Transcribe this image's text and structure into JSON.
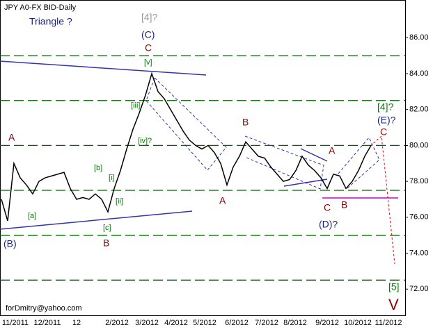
{
  "chart_data": {
    "type": "line",
    "title": "JPY A0-FX BID-Daily",
    "subtitle": "Triangle ?",
    "footer": "forDmitry@yahoo.com",
    "x_labels": [
      "11/2011",
      "12/2011",
      "12",
      "2/2012",
      "3/2012",
      "4/2012",
      "5/2012",
      "6/2012",
      "7/2012",
      "8/2012",
      "9/2012",
      "10/2012",
      "11/2012"
    ],
    "series": [
      {
        "name": "JPY A0-FX BID",
        "color": "#000000",
        "values": [
          77.0,
          75.8,
          79.0,
          78.2,
          77.8,
          77.3,
          78.0,
          78.2,
          78.3,
          78.4,
          78.5,
          77.6,
          77.0,
          77.1,
          77.0,
          77.3,
          77.0,
          76.3,
          77.6,
          78.6,
          79.8,
          80.9,
          81.8,
          82.8,
          84.0,
          83.0,
          82.6,
          82.0,
          81.4,
          80.8,
          80.3,
          80.0,
          79.8,
          80.0,
          79.6,
          79.0,
          77.8,
          78.8,
          79.4,
          80.2,
          79.8,
          79.4,
          79.3,
          78.8,
          78.4,
          78.0,
          78.1,
          78.6,
          79.4,
          78.9,
          78.6,
          78.2,
          77.6,
          78.4,
          78.3,
          77.6,
          78.0,
          78.6,
          79.4,
          80.0
        ]
      }
    ],
    "ylim": [
      70.5,
      88.1
    ],
    "yticks": [
      {
        "value": 72,
        "label": "72.00"
      },
      {
        "value": 74,
        "label": "74.00"
      },
      {
        "value": 76,
        "label": "76.00"
      },
      {
        "value": 78,
        "label": "78.00"
      },
      {
        "value": 80,
        "label": "80.00"
      },
      {
        "value": 82,
        "label": "82.00"
      },
      {
        "value": 84,
        "label": "84.00"
      },
      {
        "value": 86,
        "label": "86.00"
      }
    ],
    "grid_levels": [
      72.5,
      75,
      77.5,
      80,
      82.5,
      85
    ],
    "grid_color": "#006600",
    "annotations": [
      "[4]?",
      "(C)",
      "C",
      "[v]",
      "A",
      "[b]",
      "[i]",
      "[a]",
      "[iii]",
      "[iv]?",
      "[ii]",
      "[c]",
      "B",
      "(B)",
      "B",
      "A",
      "A",
      "C",
      "B",
      "(D)?",
      "[4]?",
      "(E)?",
      "C",
      "[5]",
      "V"
    ]
  }
}
